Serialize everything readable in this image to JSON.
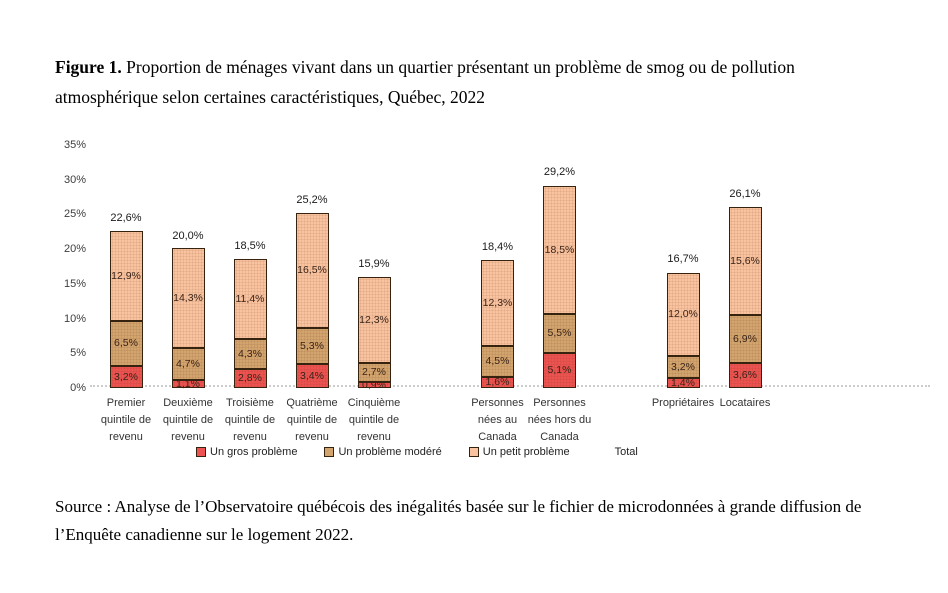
{
  "title": {
    "prefix": "Figure 1.",
    "rest": " Proportion de ménages vivant dans un quartier présentant un problème de smog ou de pollution atmosphérique selon certaines caractéristiques, Québec, 2022"
  },
  "source_note": "Source : Analyse de l’Observatoire québécois des inégalités basée sur le fichier de microdonnées à grande diffusion de l’Enquête canadienne sur le logement 2022.",
  "chart_data": {
    "type": "bar",
    "stacked": true,
    "title": "",
    "xlabel": "",
    "ylabel": "",
    "ylim": [
      0,
      35
    ],
    "yticks": [
      0,
      5,
      10,
      15,
      20,
      25,
      30,
      35
    ],
    "ytick_labels": [
      "0%",
      "5%",
      "10%",
      "15%",
      "20%",
      "25%",
      "30%",
      "35%"
    ],
    "grid": false,
    "legend_position": "bottom",
    "categories": [
      "Premier quintile de revenu",
      "Deuxième quintile de revenu",
      "Troisième quintile de revenu",
      "Quatrième quintile de revenu",
      "Cinquième quintile de revenu",
      "Personnes nées au Canada",
      "Personnes nées hors du Canada",
      "Propriétaires",
      "Locataires"
    ],
    "category_label_lines": [
      [
        "Premier",
        "quintile de",
        "revenu"
      ],
      [
        "Deuxième",
        "quintile de",
        "revenu"
      ],
      [
        "Troisième",
        "quintile de",
        "revenu"
      ],
      [
        "Quatrième",
        "quintile de",
        "revenu"
      ],
      [
        "Cinquième",
        "quintile de",
        "revenu"
      ],
      [
        "Personnes",
        "nées au",
        "Canada"
      ],
      [
        "Personnes",
        "nées hors du",
        "Canada"
      ],
      [
        "Propriétaires"
      ],
      [
        "Locataires"
      ]
    ],
    "category_groups": [
      0,
      0,
      0,
      0,
      0,
      1,
      1,
      2,
      2
    ],
    "series": [
      {
        "name": "Un gros problème",
        "color": "#ED5351",
        "values": [
          3.2,
          1.1,
          2.8,
          3.4,
          0.9,
          1.6,
          5.1,
          1.4,
          3.6
        ],
        "value_labels": [
          "3,2%",
          "1,1%",
          "2,8%",
          "3,4%",
          "0,9%",
          "1,6%",
          "5,1%",
          "1,4%",
          "3,6%"
        ]
      },
      {
        "name": "Un problème modéré",
        "color": "#D3A56E",
        "values": [
          6.5,
          4.7,
          4.3,
          5.3,
          2.7,
          4.5,
          5.5,
          3.2,
          6.9
        ],
        "value_labels": [
          "6,5%",
          "4,7%",
          "4,3%",
          "5,3%",
          "2,7%",
          "4,5%",
          "5,5%",
          "3,2%",
          "6,9%"
        ]
      },
      {
        "name": "Un petit problème",
        "color": "#FAC4A0",
        "values": [
          12.9,
          14.3,
          11.4,
          16.5,
          12.3,
          12.3,
          18.5,
          12.0,
          15.6
        ],
        "value_labels": [
          "12,9%",
          "14,3%",
          "11,4%",
          "16,5%",
          "12,3%",
          "12,3%",
          "18,5%",
          "12,0%",
          "15,6%"
        ]
      }
    ],
    "totals": {
      "name": "Total",
      "values": [
        22.6,
        20.0,
        18.5,
        25.2,
        15.9,
        18.4,
        29.2,
        16.7,
        26.1
      ],
      "labels": [
        "22,6%",
        "20,0%",
        "18,5%",
        "25,2%",
        "15,9%",
        "18,4%",
        "29,2%",
        "16,7%",
        "26,1%"
      ]
    },
    "legend": [
      "Un gros problème",
      "Un problème modéré",
      "Un petit problème",
      "Total"
    ],
    "bar_outline_color": "#35220F",
    "baseline_color": "#CCCCCC"
  }
}
